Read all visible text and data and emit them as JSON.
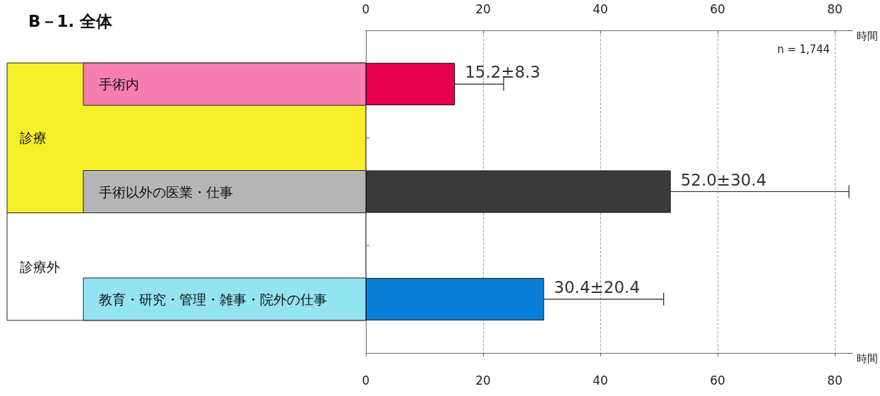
{
  "chart_data": {
    "type": "bar",
    "orientation": "horizontal",
    "title": "B－1. 全体",
    "categories": [
      "手術内",
      "手術以外の医業・仕事",
      "教育・研究・管理・雑事・院外の仕事"
    ],
    "values": [
      15.2,
      52.0,
      30.4
    ],
    "colors": [
      "#e8004f",
      "#3a3a3a",
      "#0a7fd8"
    ],
    "errors": [
      8.3,
      30.4,
      20.4
    ],
    "value_labels": [
      "15.2±8.3",
      "52.0±30.4",
      "30.4±20.4"
    ],
    "xlabel": "時間",
    "x2label": "時間",
    "xlim": [
      0,
      83
    ],
    "xticks": [
      0,
      20,
      40,
      60,
      80
    ],
    "x2lim": [
      0,
      83
    ],
    "x2ticks": [
      0,
      20,
      40,
      60,
      80
    ],
    "grid": "x",
    "annotations": [
      "n = 1,744",
      "診療",
      "診療外"
    ]
  }
}
